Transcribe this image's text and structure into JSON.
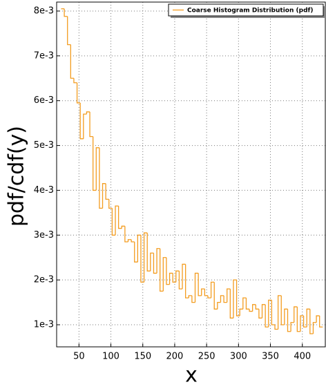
{
  "chart_data": {
    "type": "histogram",
    "xlabel": "x",
    "ylabel": "pdf/cdf(y)",
    "series": [
      {
        "name": "Coarse Histogram Distribution (pdf)",
        "color": "#f39c1f",
        "bins": [
          22,
          27,
          32,
          37,
          42,
          47,
          52,
          57,
          62,
          67,
          72,
          77,
          82,
          87,
          92,
          97,
          102,
          107,
          112,
          117,
          122,
          127,
          132,
          137,
          142,
          147,
          152,
          157,
          162,
          167,
          172,
          177,
          182,
          187,
          192,
          197,
          202,
          207,
          212,
          217,
          222,
          227,
          232,
          237,
          242,
          247,
          252,
          257,
          262,
          267,
          272,
          277,
          282,
          287,
          292,
          297,
          302,
          307,
          312,
          317,
          322,
          327,
          332,
          337,
          342,
          347,
          352,
          357,
          362,
          367,
          372,
          377,
          382,
          387,
          392,
          397,
          402,
          407,
          412,
          417,
          422,
          427,
          432
        ],
        "values": [
          0.00805,
          0.00788,
          0.00725,
          0.0065,
          0.0064,
          0.00595,
          0.00515,
          0.0057,
          0.00575,
          0.0052,
          0.004,
          0.00495,
          0.0036,
          0.00415,
          0.0038,
          0.0036,
          0.003,
          0.00365,
          0.00315,
          0.0032,
          0.00285,
          0.0029,
          0.00285,
          0.0024,
          0.003,
          0.00195,
          0.00305,
          0.0022,
          0.0026,
          0.00215,
          0.0027,
          0.00175,
          0.0025,
          0.0019,
          0.00215,
          0.00195,
          0.0022,
          0.0018,
          0.00235,
          0.0016,
          0.00165,
          0.0015,
          0.00215,
          0.00165,
          0.0018,
          0.00165,
          0.0016,
          0.00195,
          0.00135,
          0.0015,
          0.00165,
          0.0015,
          0.0018,
          0.00115,
          0.002,
          0.0012,
          0.00135,
          0.0016,
          0.00135,
          0.0013,
          0.00145,
          0.00135,
          0.00115,
          0.00145,
          0.00095,
          0.00155,
          0.001,
          0.0009,
          0.00165,
          0.001,
          0.00135,
          0.00085,
          0.00105,
          0.0014,
          0.00085,
          0.0012,
          0.00095,
          0.00135,
          0.0008,
          0.00105,
          0.0012,
          0.00095
        ]
      }
    ],
    "xlim": [
      15,
      436
    ],
    "xticks": [
      50,
      100,
      150,
      200,
      250,
      300,
      350,
      400
    ],
    "ylim": [
      0.000507,
      0.0082
    ],
    "yticks": [
      {
        "value": 0.001,
        "label": "1e-3"
      },
      {
        "value": 0.002,
        "label": "2e-3"
      },
      {
        "value": 0.003,
        "label": "3e-3"
      },
      {
        "value": 0.004,
        "label": "4e-3"
      },
      {
        "value": 0.005,
        "label": "5e-3"
      },
      {
        "value": 0.006,
        "label": "6e-3"
      },
      {
        "value": 0.007,
        "label": "7e-3"
      },
      {
        "value": 0.008,
        "label": "8e-3"
      }
    ],
    "grid": true,
    "legend": "upper right"
  }
}
